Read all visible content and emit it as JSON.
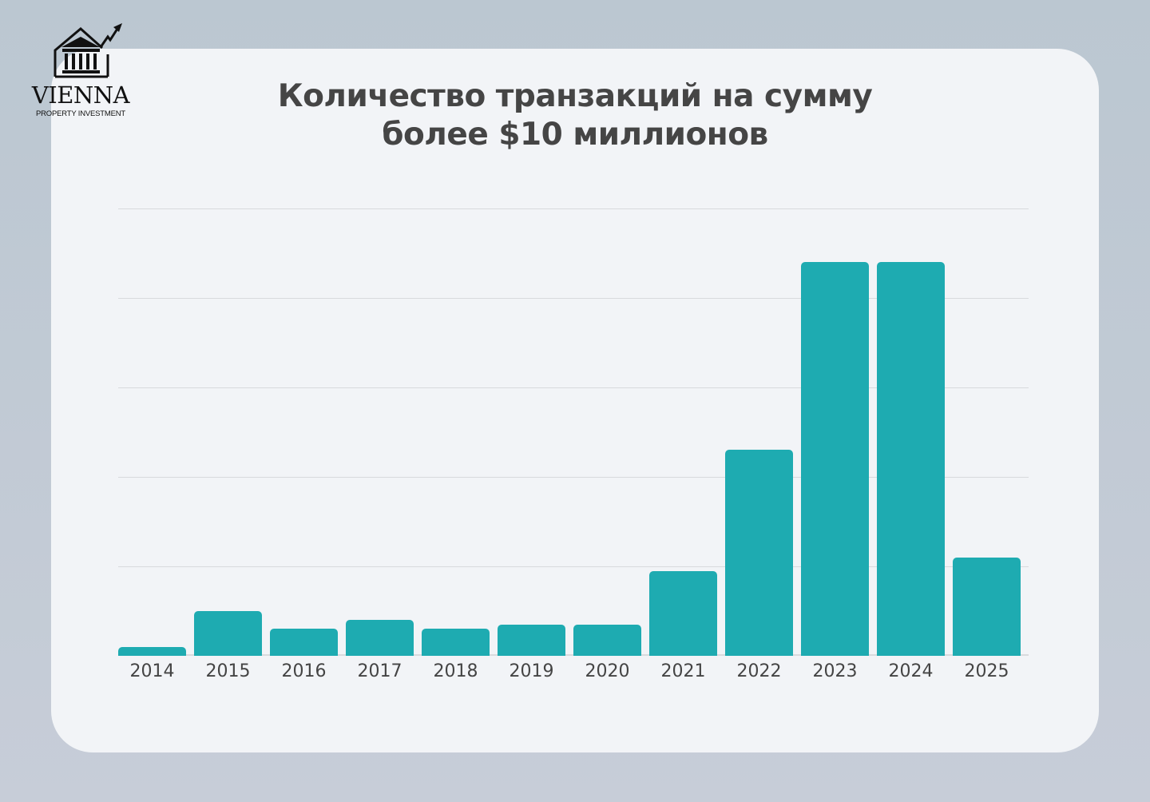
{
  "brand": {
    "name": "VIENNA",
    "tagline": "PROPERTY INVESTMENT",
    "icon": "building-with-rising-arrow-icon"
  },
  "chart_data": {
    "type": "bar",
    "title": "Количество транзакций на сумму более $10 миллионов",
    "title_lines": [
      "Количество транзакций на сумму",
      "более $10 миллионов"
    ],
    "categories": [
      "2014",
      "2015",
      "2016",
      "2017",
      "2018",
      "2019",
      "2020",
      "2021",
      "2022",
      "2023",
      "2024",
      "2025"
    ],
    "values": [
      2,
      10,
      6,
      8,
      6,
      7,
      7,
      19,
      46,
      88,
      88,
      22
    ],
    "xlabel": "",
    "ylabel": "",
    "ylim": [
      0,
      100
    ],
    "yticks": [
      0,
      20,
      40,
      60,
      80,
      100
    ],
    "ytick_labels_visible": false,
    "grid": true,
    "legend": null,
    "bar_color": "#1eabb1"
  }
}
